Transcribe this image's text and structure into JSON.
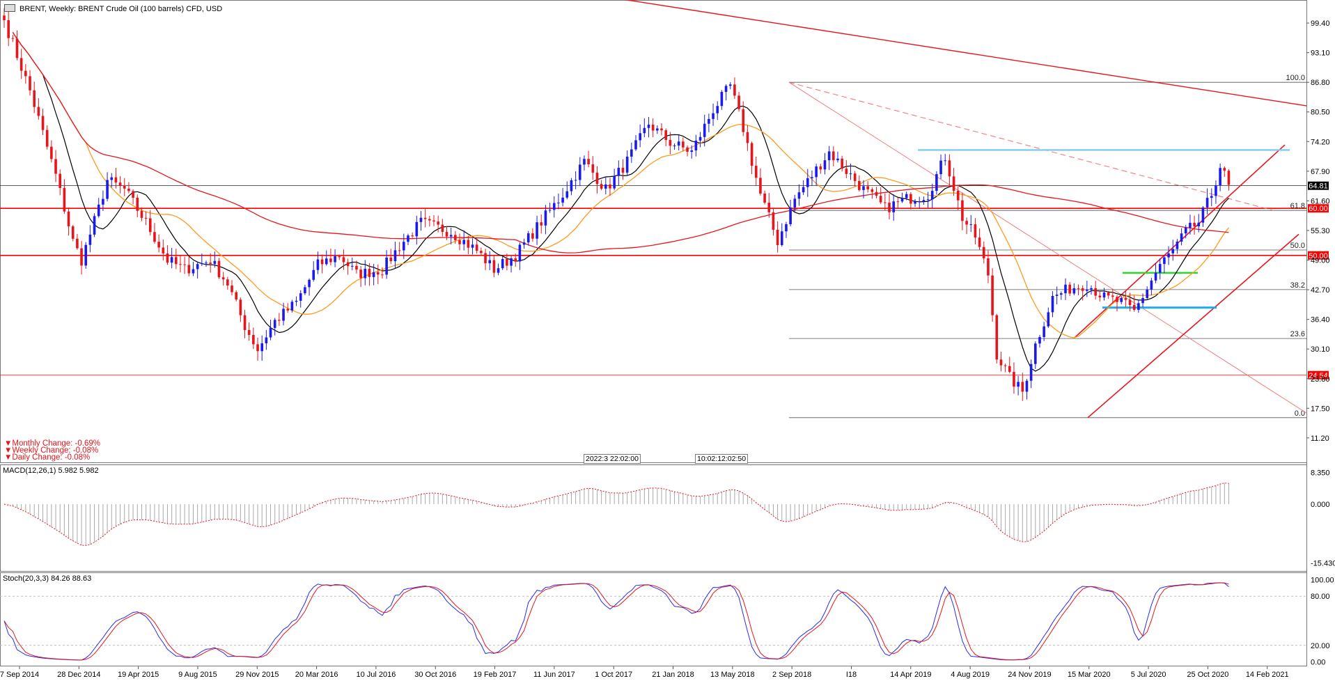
{
  "chart_title": "BRENT, Weekly:  BRENT Crude Oil (100 barrels) CFD, USD",
  "changes": {
    "monthly": "Monthly Change: -0.69%",
    "weekly": "Weekly Change: -0.08%",
    "daily": "Daily Change: -0.08%"
  },
  "time_markers": [
    "2022:3 22:02:00",
    "10:02:12:02:50"
  ],
  "chart_data": [
    {
      "type": "candlestick",
      "title": "BRENT, Weekly:  BRENT Crude Oil (100 barrels) CFD, USD",
      "ylim": [
        6,
        104
      ],
      "y_ticks": [
        "99.40",
        "93.10",
        "86.80",
        "80.50",
        "74.20",
        "67.90",
        "61.60",
        "55.30",
        "49.00",
        "42.70",
        "36.40",
        "30.10",
        "23.80",
        "17.50",
        "11.20"
      ],
      "x_tick_labels": [
        "7 Sep 2014",
        "28 Dec 2014",
        "19 Apr 2015",
        "9 Aug 2015",
        "29 Nov 2015",
        "20 Mar 2016",
        "10 Jul 2016",
        "30 Oct 2016",
        "19 Feb 2017",
        "11 Jun 2017",
        "1 Oct 2017",
        "21 Jan 2018",
        "13 May 2018",
        "2 Sep 2018",
        "I18",
        "14 Apr 2019",
        "4 Aug 2019",
        "24 Nov 2019",
        "15 Mar 2020",
        "5 Jul 2020",
        "25 Oct 2020",
        "14 Feb 2021"
      ],
      "price_anchors": [
        [
          0,
          100
        ],
        [
          6,
          85
        ],
        [
          12,
          67
        ],
        [
          16,
          53
        ],
        [
          18,
          49
        ],
        [
          22,
          60
        ],
        [
          24,
          66
        ],
        [
          28,
          64
        ],
        [
          33,
          57
        ],
        [
          38,
          49
        ],
        [
          42,
          47
        ],
        [
          48,
          49
        ],
        [
          52,
          44
        ],
        [
          56,
          35
        ],
        [
          59,
          30
        ],
        [
          63,
          36
        ],
        [
          68,
          40
        ],
        [
          73,
          48
        ],
        [
          78,
          50
        ],
        [
          82,
          46
        ],
        [
          88,
          47
        ],
        [
          92,
          52
        ],
        [
          97,
          57
        ],
        [
          104,
          55
        ],
        [
          110,
          51
        ],
        [
          114,
          47
        ],
        [
          119,
          50
        ],
        [
          124,
          56
        ],
        [
          130,
          63
        ],
        [
          135,
          70
        ],
        [
          140,
          64
        ],
        [
          145,
          70
        ],
        [
          150,
          78
        ],
        [
          155,
          74
        ],
        [
          160,
          72
        ],
        [
          165,
          81
        ],
        [
          169,
          86
        ],
        [
          172,
          77
        ],
        [
          176,
          63
        ],
        [
          180,
          53
        ],
        [
          184,
          62
        ],
        [
          188,
          67
        ],
        [
          192,
          72
        ],
        [
          196,
          68
        ],
        [
          200,
          64
        ],
        [
          205,
          60
        ],
        [
          210,
          62
        ],
        [
          215,
          63
        ],
        [
          219,
          71
        ],
        [
          223,
          58
        ],
        [
          226,
          54
        ],
        [
          229,
          46
        ],
        [
          231,
          29
        ],
        [
          234,
          24
        ],
        [
          237,
          21
        ],
        [
          240,
          31
        ],
        [
          244,
          41
        ],
        [
          248,
          43
        ],
        [
          252,
          44
        ],
        [
          256,
          41
        ],
        [
          260,
          40
        ],
        [
          263,
          38
        ],
        [
          266,
          43
        ],
        [
          269,
          48
        ],
        [
          272,
          51
        ],
        [
          275,
          55
        ],
        [
          278,
          57
        ],
        [
          281,
          63
        ],
        [
          283,
          69
        ],
        [
          285,
          65
        ]
      ],
      "last_price": "64.81",
      "levels": [
        {
          "price": 60.0,
          "label": "60.00",
          "color": "#ff0000"
        },
        {
          "price": 50.0,
          "label": "50.00",
          "color": "#ff0000"
        },
        {
          "price": 24.54,
          "label": "24.54",
          "color": "#ff0000"
        },
        {
          "price": 64.81,
          "label": "64.81",
          "color": "#000000"
        }
      ],
      "fibonacci": {
        "high": 86.8,
        "low": 15.5,
        "levels": [
          {
            "ratio": 1.0,
            "label": "100.0"
          },
          {
            "ratio": 0.618,
            "label": "61.8"
          },
          {
            "ratio": 0.5,
            "label": "50.0"
          },
          {
            "ratio": 0.382,
            "label": "38.2"
          },
          {
            "ratio": 0.236,
            "label": "23.6"
          },
          {
            "ratio": 0.0,
            "label": "0.0"
          }
        ]
      },
      "moving_averages": [
        {
          "period": 10,
          "color": "#000000"
        },
        {
          "period": 20,
          "color": "#ff9a1a"
        },
        {
          "period": 120,
          "color": "#e8141c"
        }
      ],
      "colors": {
        "bull": "#1a1af0",
        "bear": "#e8141c",
        "resistance": "#7ecbee",
        "support": "#22dd22"
      }
    },
    {
      "type": "histogram",
      "title": "MACD(12,26,1) 5.982 5.982",
      "y_ticks": [
        "8.350",
        "0.000",
        "-15.430"
      ],
      "ylim": [
        -17,
        9.5
      ],
      "colors": {
        "bars": "#a8a8a8",
        "signal": "#e8141c"
      }
    },
    {
      "type": "line",
      "title": "Stoch(20,3,3) 84.26 88.63",
      "y_ticks": [
        "100.00",
        "80.00",
        "20.00",
        "0.00"
      ],
      "ylim": [
        -4,
        104
      ],
      "series": [
        {
          "color": "#2a2af0"
        },
        {
          "color": "#e8141c"
        }
      ]
    }
  ]
}
